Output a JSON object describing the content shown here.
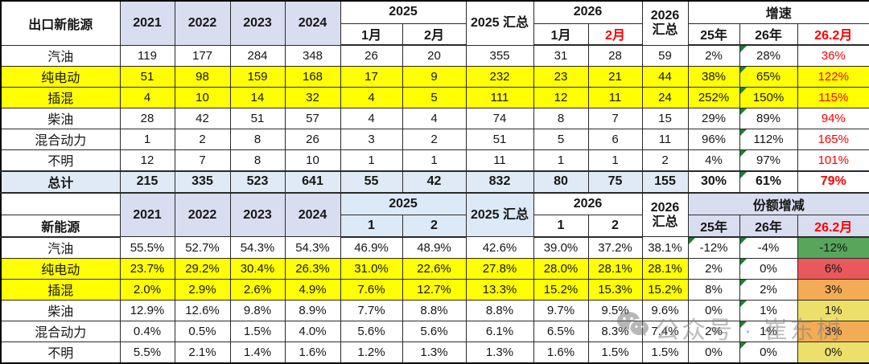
{
  "watermark": {
    "text": "公众号 · 崔东树"
  },
  "colors": {
    "header_lavender": "#d9ddf0",
    "header_lightblue": "#dce9f6",
    "row_yellow": "#ffff00",
    "total_blue": "#dfeaf6",
    "red_text": "#ff0000",
    "triangle_green": "#1e7e34",
    "green": "#58a55c",
    "salmon": "#e8585c",
    "orange": "#f3ac55",
    "gold": "#ece06b"
  },
  "chart_data": [
    {
      "type": "table",
      "title": "出口新能源",
      "header": {
        "corner": "出口新能源",
        "years": [
          "2021",
          "2022",
          "2023",
          "2024"
        ],
        "y2025": "2025",
        "m2025": [
          "1月",
          "2月"
        ],
        "s2025": "2025 汇总",
        "y2026": "2026",
        "m2026": [
          "1月",
          "2月"
        ],
        "s2026": "2026 汇总",
        "metric": "增速",
        "metric_sub": [
          "25年",
          "26年",
          "26.2月"
        ]
      },
      "rows": [
        {
          "label": "汽油",
          "style": "plain",
          "tri": [
            11
          ],
          "cells": [
            "119",
            "177",
            "284",
            "348",
            "26",
            "20",
            "355",
            "31",
            "28",
            "59",
            "2%",
            "28%",
            "36%"
          ]
        },
        {
          "label": "纯电动",
          "style": "hl",
          "tri": [
            11
          ],
          "cells": [
            "51",
            "98",
            "159",
            "168",
            "17",
            "9",
            "232",
            "23",
            "21",
            "44",
            "38%",
            "65%",
            "122%"
          ]
        },
        {
          "label": "插混",
          "style": "hl",
          "tri": [
            11
          ],
          "cells": [
            "4",
            "10",
            "14",
            "32",
            "4",
            "5",
            "111",
            "12",
            "11",
            "24",
            "252%",
            "150%",
            "115%"
          ]
        },
        {
          "label": "柴油",
          "style": "plain",
          "tri": [
            11
          ],
          "cells": [
            "28",
            "42",
            "51",
            "57",
            "4",
            "4",
            "74",
            "8",
            "7",
            "15",
            "29%",
            "89%",
            "94%"
          ]
        },
        {
          "label": "混合动力",
          "style": "plain",
          "tri": [
            11
          ],
          "cells": [
            "1",
            "2",
            "8",
            "26",
            "3",
            "2",
            "51",
            "5",
            "6",
            "11",
            "96%",
            "112%",
            "165%"
          ]
        },
        {
          "label": "不明",
          "style": "plain",
          "tri": [
            11
          ],
          "cells": [
            "12",
            "7",
            "8",
            "10",
            "1",
            "1",
            "11",
            "1",
            "1",
            "2",
            "4%",
            "97%",
            "101%"
          ]
        },
        {
          "label": "总计",
          "style": "total",
          "tri": [
            11
          ],
          "cells": [
            "215",
            "335",
            "523",
            "641",
            "55",
            "42",
            "832",
            "80",
            "75",
            "155",
            "30%",
            "61%",
            "79%"
          ]
        }
      ]
    },
    {
      "type": "table",
      "title": "新能源",
      "header": {
        "corner": "新能源",
        "years": [
          "2021",
          "2022",
          "2023",
          "2024"
        ],
        "y2025": "2025",
        "m2025": [
          "1",
          "2"
        ],
        "s2025": "2025 汇总",
        "y2026": "2026",
        "m2026": [
          "1",
          "2"
        ],
        "s2026": "2026 汇总",
        "metric": "份额增减",
        "metric_sub": [
          "25年",
          "26年",
          "26.2月"
        ]
      },
      "rows": [
        {
          "label": "汽油",
          "style": "plain",
          "tri": [
            10,
            11
          ],
          "last_color": "green",
          "cells": [
            "55.5%",
            "52.7%",
            "54.3%",
            "54.3%",
            "46.9%",
            "48.9%",
            "42.6%",
            "39.0%",
            "37.2%",
            "38.1%",
            "-12%",
            "-4%",
            "-12%"
          ]
        },
        {
          "label": "纯电动",
          "style": "hl",
          "tri": [
            11
          ],
          "last_color": "salmon",
          "cells": [
            "23.7%",
            "29.2%",
            "30.4%",
            "26.3%",
            "31.0%",
            "22.6%",
            "27.8%",
            "28.0%",
            "28.1%",
            "28.1%",
            "2%",
            "0%",
            "6%"
          ]
        },
        {
          "label": "插混",
          "style": "hl",
          "tri": [
            11
          ],
          "last_color": "orange",
          "cells": [
            "2.0%",
            "2.9%",
            "2.6%",
            "4.9%",
            "7.6%",
            "12.7%",
            "13.3%",
            "15.2%",
            "15.3%",
            "15.2%",
            "8%",
            "2%",
            "3%"
          ]
        },
        {
          "label": "柴油",
          "style": "plain",
          "tri": [
            11
          ],
          "last_color": "gold",
          "cells": [
            "12.9%",
            "12.6%",
            "9.8%",
            "8.9%",
            "7.7%",
            "8.8%",
            "8.8%",
            "9.7%",
            "9.5%",
            "9.6%",
            "0%",
            "1%",
            "1%"
          ]
        },
        {
          "label": "混合动力",
          "style": "plain",
          "tri": [
            11
          ],
          "last_color": "orange",
          "cells": [
            "0.4%",
            "0.5%",
            "1.5%",
            "4.0%",
            "5.6%",
            "5.6%",
            "6.1%",
            "6.5%",
            "8.3%",
            "7.4%",
            "2%",
            "1%",
            "3%"
          ]
        },
        {
          "label": "不明",
          "style": "plain",
          "tri": [
            11
          ],
          "last_color": "gold",
          "cells": [
            "5.5%",
            "2.1%",
            "1.4%",
            "1.6%",
            "1.2%",
            "1.3%",
            "1.3%",
            "1.6%",
            "1.5%",
            "1.5%",
            "0%",
            "0%",
            "0%"
          ]
        }
      ]
    }
  ]
}
